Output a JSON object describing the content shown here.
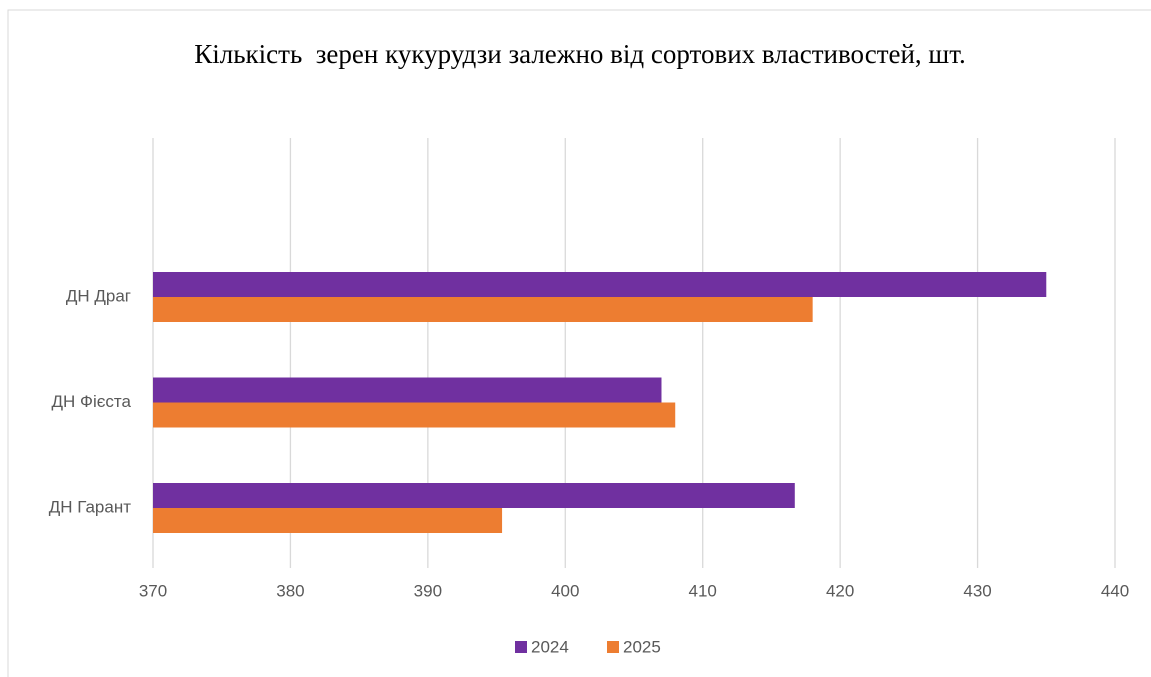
{
  "chart_data": {
    "type": "barh",
    "title": "Кількість  зерен кукурудзи залежно від сортових властивостей, шт.",
    "categories": [
      "ДН Драг",
      "ДН Фієста",
      "ДН Гарант"
    ],
    "series": [
      {
        "name": "2024",
        "color": "#7030a0",
        "values": [
          435,
          407,
          416.7
        ]
      },
      {
        "name": "2025",
        "color": "#ed7d31",
        "values": [
          418,
          408,
          395.4
        ]
      }
    ],
    "xlim": [
      370,
      440
    ],
    "xticks": [
      370,
      380,
      390,
      400,
      410,
      420,
      430,
      440
    ],
    "grid": true,
    "legend": "bottom"
  }
}
